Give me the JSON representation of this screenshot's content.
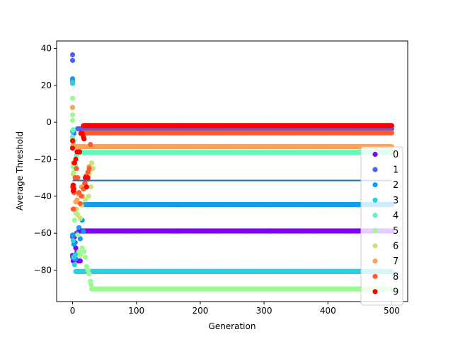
{
  "chart_data": {
    "type": "scatter",
    "title": "",
    "xlabel": "Generation",
    "ylabel": "Average Threshold",
    "xlim": [
      -25,
      525
    ],
    "ylim": [
      -97,
      44
    ],
    "xticks": [
      0,
      100,
      200,
      300,
      400,
      500
    ],
    "yticks": [
      -80,
      -60,
      -40,
      -20,
      0,
      20,
      40
    ],
    "xtick_labels": [
      "0",
      "100",
      "200",
      "300",
      "400",
      "500"
    ],
    "ytick_labels": [
      "−80",
      "−60",
      "−40",
      "−20",
      "0",
      "20",
      "40"
    ],
    "grid": false,
    "legend": {
      "placement": "right",
      "entries": [
        "0",
        "1",
        "2",
        "3",
        "4",
        "5",
        "6",
        "7",
        "8",
        "9"
      ]
    },
    "extra_line": {
      "y": -31.5,
      "x": [
        0,
        500
      ],
      "color": "#1f77b4"
    },
    "series": [
      {
        "name": "0",
        "color": "#8000ff",
        "plateau": -58.8,
        "start": 10,
        "early": [
          [
            0,
            -72
          ],
          [
            1,
            -75
          ],
          [
            3,
            -62
          ],
          [
            5,
            -68
          ],
          [
            7,
            -70
          ],
          [
            9,
            -75
          ],
          [
            12,
            -75
          ]
        ]
      },
      {
        "name": "1",
        "color": "#4a62f6",
        "plateau": -3.5,
        "start": 8,
        "early": [
          [
            0,
            33.5
          ],
          [
            0,
            36.5
          ],
          [
            0,
            -62
          ],
          [
            0,
            -73
          ],
          [
            1,
            -5
          ],
          [
            2,
            -6
          ],
          [
            3,
            -72
          ],
          [
            4,
            -65
          ],
          [
            5,
            -74
          ],
          [
            6,
            -60
          ]
        ]
      },
      {
        "name": "2",
        "color": "#139ced",
        "plateau": -44.5,
        "start": 18,
        "early": [
          [
            0,
            23.5
          ],
          [
            0,
            22.5
          ],
          [
            0,
            -61
          ],
          [
            2,
            -66
          ],
          [
            4,
            -74
          ],
          [
            6,
            -71
          ],
          [
            10,
            -57
          ],
          [
            12,
            -63
          ],
          [
            15,
            -53
          ],
          [
            17,
            -59
          ]
        ]
      },
      {
        "name": "3",
        "color": "#2ad0df",
        "plateau": -80.7,
        "start": 5,
        "early": [
          [
            0,
            21.5
          ],
          [
            0,
            21
          ],
          [
            0,
            -5
          ],
          [
            1,
            -64
          ],
          [
            2,
            -73
          ],
          [
            3,
            -77
          ],
          [
            4,
            -72
          ]
        ]
      },
      {
        "name": "4",
        "color": "#60f9ba",
        "plateau": -16.3,
        "start": 8,
        "early": [
          [
            0,
            8
          ],
          [
            0,
            -8
          ],
          [
            1,
            -4
          ],
          [
            2,
            -10
          ],
          [
            4,
            -23
          ],
          [
            6,
            -18
          ]
        ]
      },
      {
        "name": "5",
        "color": "#9bfa95",
        "plateau": -90.2,
        "start": 30,
        "early": [
          [
            0,
            13
          ],
          [
            0,
            4
          ],
          [
            0,
            1
          ],
          [
            1,
            -24
          ],
          [
            2,
            -27
          ],
          [
            3,
            -53
          ],
          [
            5,
            -49
          ],
          [
            8,
            -61
          ],
          [
            10,
            -70
          ],
          [
            12,
            -72
          ],
          [
            15,
            -68
          ],
          [
            18,
            -70
          ],
          [
            20,
            -73
          ],
          [
            22,
            -78
          ],
          [
            24,
            -80
          ],
          [
            26,
            -82
          ],
          [
            28,
            -86
          ],
          [
            29,
            -88
          ]
        ]
      },
      {
        "name": "6",
        "color": "#c9e47a",
        "plateau": null,
        "start": null,
        "early": [
          [
            1,
            -28
          ],
          [
            3,
            -38
          ],
          [
            6,
            -47
          ],
          [
            8,
            -50
          ],
          [
            12,
            -52
          ],
          [
            14,
            -45
          ],
          [
            16,
            -40
          ],
          [
            18,
            -36
          ],
          [
            20,
            -33
          ],
          [
            22,
            -31
          ],
          [
            24,
            -29
          ],
          [
            26,
            -28
          ],
          [
            28,
            -26
          ],
          [
            30,
            -22
          ],
          [
            32,
            -25
          ],
          [
            29,
            -35
          ],
          [
            25,
            -40
          ],
          [
            20,
            -42
          ]
        ]
      },
      {
        "name": "7",
        "color": "#f9a35d",
        "plateau": -13.2,
        "start": 0,
        "early": [
          [
            0,
            8
          ],
          [
            1,
            -12
          ],
          [
            1,
            -22
          ],
          [
            2,
            -36
          ],
          [
            3,
            -47
          ],
          [
            5,
            -43
          ],
          [
            7,
            -42
          ],
          [
            10,
            -39
          ],
          [
            14,
            -35
          ],
          [
            20,
            -33
          ],
          [
            24,
            -31
          ],
          [
            26,
            -24
          ]
        ]
      },
      {
        "name": "8",
        "color": "#ff5a30",
        "plateau": -5.7,
        "start": 15,
        "early": [
          [
            0,
            -35
          ],
          [
            1,
            -47
          ],
          [
            2,
            -38
          ],
          [
            4,
            -30
          ],
          [
            6,
            -25
          ],
          [
            8,
            -30
          ],
          [
            10,
            -38
          ],
          [
            12,
            -44
          ],
          [
            14,
            -40
          ],
          [
            17,
            -36
          ],
          [
            19,
            -33
          ],
          [
            21,
            -29
          ],
          [
            24,
            -27
          ],
          [
            26,
            -25
          ],
          [
            28,
            -12
          ]
        ]
      },
      {
        "name": "9",
        "color": "#ff0000",
        "plateau": -1.8,
        "start": 17,
        "early": [
          [
            0,
            -10
          ],
          [
            0,
            -14
          ],
          [
            1,
            -34
          ],
          [
            1,
            -37
          ],
          [
            2,
            -36
          ],
          [
            3,
            -22
          ],
          [
            5,
            -20
          ],
          [
            7,
            -16
          ],
          [
            9,
            -16
          ],
          [
            11,
            -16
          ],
          [
            13,
            -6
          ],
          [
            15,
            -6
          ],
          [
            17,
            -8
          ],
          [
            18,
            -9
          ],
          [
            20,
            -30
          ],
          [
            22,
            -35
          ],
          [
            24,
            -30
          ]
        ]
      }
    ]
  }
}
